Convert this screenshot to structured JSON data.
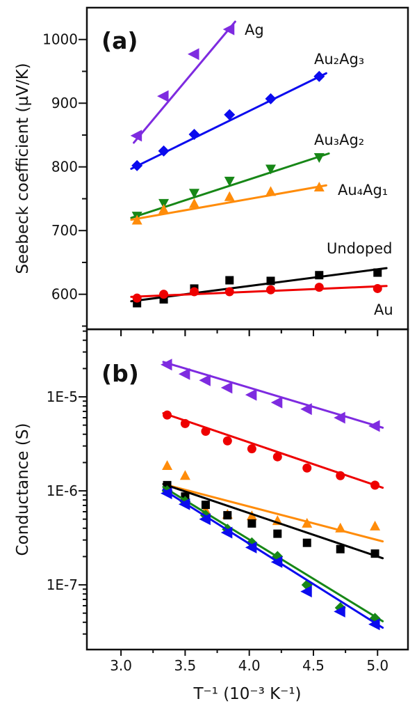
{
  "chart_data": [
    {
      "type": "line",
      "panel": "a",
      "panel_label": "(a)",
      "xlabel": "",
      "ylabel": "Seebeck coefficient (µV/K)",
      "xlim": [
        2.734,
        5.237
      ],
      "ylim": [
        545,
        1050
      ],
      "grid": false,
      "legend_position": "inline-labels",
      "x_ticks": {
        "values": [
          3.0,
          3.5,
          4.0,
          4.5,
          5.0
        ],
        "labels_shown": false,
        "minor_step": 0.25
      },
      "y_ticks": {
        "values": [
          600,
          700,
          800,
          900,
          1000
        ],
        "labels": [
          "600",
          "700",
          "800",
          "900",
          "1000"
        ],
        "minor": [
          550,
          650,
          750,
          850,
          950
        ]
      },
      "series": [
        {
          "id": "ag",
          "name": "Ag",
          "label": "Ag",
          "color": "#7e2be0",
          "marker": "triangle-left",
          "x": [
            3.125,
            3.333,
            3.571,
            3.846
          ],
          "y": [
            849,
            911,
            977,
            1016
          ],
          "fit_line": {
            "x": [
              3.1,
              3.89
            ],
            "y": [
              838,
              1028
            ]
          }
        },
        {
          "id": "au2ag3",
          "name": "Au2Ag3",
          "label": "Au₂Ag₃",
          "color": "#0b0bee",
          "marker": "diamond",
          "x": [
            3.125,
            3.333,
            3.571,
            3.846,
            4.167,
            4.545
          ],
          "y": [
            802,
            825,
            851,
            882,
            907,
            942
          ],
          "fit_line": {
            "x": [
              3.08,
              4.6
            ],
            "y": [
              797,
              947
            ]
          }
        },
        {
          "id": "au3ag2",
          "name": "Au3Ag2",
          "label": "Au₃Ag₂",
          "color": "#178717",
          "marker": "triangle-down",
          "x": [
            3.125,
            3.333,
            3.571,
            3.846,
            4.167,
            4.545
          ],
          "y": [
            723,
            743,
            759,
            778,
            797,
            815
          ],
          "fit_line": {
            "x": [
              3.08,
              4.62
            ],
            "y": [
              720,
              821
            ]
          }
        },
        {
          "id": "au4ag1",
          "name": "Au4Ag1",
          "label": "Au₄Ag₁",
          "color": "#ff8c0a",
          "marker": "triangle-up",
          "x": [
            3.125,
            3.333,
            3.571,
            3.846,
            4.167,
            4.545
          ],
          "y": [
            716,
            733,
            742,
            753,
            761,
            768
          ],
          "fit_line": {
            "x": [
              3.08,
              4.6
            ],
            "y": [
              717,
              771
            ]
          }
        },
        {
          "id": "undoped",
          "name": "Undoped",
          "label": "Undoped",
          "color": "#000000",
          "marker": "square",
          "x": [
            3.125,
            3.333,
            3.571,
            3.846,
            4.167,
            4.545,
            5.0
          ],
          "y": [
            586,
            592,
            609,
            622,
            621,
            630,
            634
          ],
          "fit_line": {
            "x": [
              3.08,
              5.07
            ],
            "y": [
              589,
              641
            ]
          }
        },
        {
          "id": "au",
          "name": "Au",
          "label": "Au",
          "color": "#ee0000",
          "marker": "circle",
          "x": [
            3.125,
            3.333,
            3.571,
            3.846,
            4.167,
            4.545,
            5.0
          ],
          "y": [
            594,
            600,
            604,
            604,
            607,
            611,
            609
          ],
          "fit_line": {
            "x": [
              3.08,
              5.07
            ],
            "y": [
              596,
              613
            ]
          }
        }
      ]
    },
    {
      "type": "line",
      "panel": "b",
      "panel_label": "(b)",
      "xlabel": "T⁻¹ (10⁻³ K⁻¹)",
      "ylabel": "Conductance (S)",
      "yscale": "log",
      "xlim": [
        2.734,
        5.237
      ],
      "ylim": [
        2.05e-08,
        5.23e-05
      ],
      "grid": false,
      "legend_position": "none",
      "x_ticks": {
        "values": [
          3.0,
          3.5,
          4.0,
          4.5,
          5.0
        ],
        "labels": [
          "3.0",
          "3.5",
          "4.0",
          "4.5",
          "5.0"
        ],
        "minor_step": 0.25
      },
      "y_ticks": {
        "values": [
          1e-05,
          1e-06,
          1e-07
        ],
        "labels": [
          "1E-5",
          "1E-6",
          "1E-7"
        ]
      },
      "series": [
        {
          "id": "ag",
          "name": "Ag",
          "label": "",
          "color": "#7e2be0",
          "marker": "triangle-left",
          "x": [
            3.36,
            3.5,
            3.66,
            3.83,
            4.02,
            4.22,
            4.45,
            4.71,
            4.98
          ],
          "y": [
            2.2e-05,
            1.75e-05,
            1.5e-05,
            1.25e-05,
            1.05e-05,
            8.7e-06,
            7.4e-06,
            6e-06,
            4.9e-06
          ],
          "fit_line": {
            "x": [
              3.33,
              5.04
            ],
            "y": [
              2.35e-05,
              4.7e-06
            ]
          }
        },
        {
          "id": "au",
          "name": "Au",
          "label": "",
          "color": "#ee0000",
          "marker": "circle",
          "x": [
            3.36,
            3.5,
            3.66,
            3.83,
            4.02,
            4.22,
            4.45,
            4.71,
            4.98
          ],
          "y": [
            6.4e-06,
            5.2e-06,
            4.3e-06,
            3.4e-06,
            2.8e-06,
            2.3e-06,
            1.75e-06,
            1.45e-06,
            1.15e-06
          ],
          "fit_line": {
            "x": [
              3.33,
              5.04
            ],
            "y": [
              6.7e-06,
              1.08e-06
            ]
          }
        },
        {
          "id": "au4ag1",
          "name": "Au4Ag1",
          "label": "",
          "color": "#ff8c0a",
          "marker": "triangle-up",
          "x": [
            3.36,
            3.5,
            3.66,
            3.83,
            4.02,
            4.22,
            4.45,
            4.71,
            4.98
          ],
          "y": [
            1.85e-06,
            1.45e-06,
            6.2e-07,
            5.6e-07,
            5.4e-07,
            4.8e-07,
            4.5e-07,
            4e-07,
            4.2e-07
          ],
          "fit_line": {
            "x": [
              3.33,
              5.04
            ],
            "y": [
              1.18e-06,
              2.9e-07
            ]
          }
        },
        {
          "id": "undoped",
          "name": "Undoped",
          "label": "",
          "color": "#000000",
          "marker": "square",
          "x": [
            3.36,
            3.5,
            3.66,
            3.83,
            4.02,
            4.22,
            4.45,
            4.71,
            4.98
          ],
          "y": [
            1.15e-06,
            8.7e-07,
            7.1e-07,
            5.5e-07,
            4.5e-07,
            3.5e-07,
            2.8e-07,
            2.4e-07,
            2.15e-07
          ],
          "fit_line": {
            "x": [
              3.33,
              5.04
            ],
            "y": [
              1.18e-06,
              1.92e-07
            ]
          }
        },
        {
          "id": "au3ag2",
          "name": "Au3Ag2",
          "label": "",
          "color": "#178717",
          "marker": "diamond",
          "x": [
            3.36,
            3.5,
            3.66,
            3.83,
            4.02,
            4.22,
            4.45,
            4.71,
            4.98
          ],
          "y": [
            1e-06,
            7.7e-07,
            5.5e-07,
            3.9e-07,
            2.8e-07,
            2e-07,
            1e-07,
            5.7e-08,
            4.4e-08
          ],
          "fit_line": {
            "x": [
              3.33,
              5.04
            ],
            "y": [
              1.1e-06,
              4.1e-08
            ]
          }
        },
        {
          "id": "au2ag3",
          "name": "Au2Ag3",
          "label": "",
          "color": "#0b0bee",
          "marker": "triangle-left",
          "x": [
            3.36,
            3.5,
            3.66,
            3.83,
            4.02,
            4.22,
            4.45,
            4.71,
            4.98
          ],
          "y": [
            9.4e-07,
            7.2e-07,
            5e-07,
            3.6e-07,
            2.5e-07,
            1.75e-07,
            8.5e-08,
            5.2e-08,
            3.8e-08
          ],
          "fit_line": {
            "x": [
              3.33,
              5.04
            ],
            "y": [
              1.03e-06,
              3.5e-08
            ]
          }
        }
      ]
    }
  ]
}
